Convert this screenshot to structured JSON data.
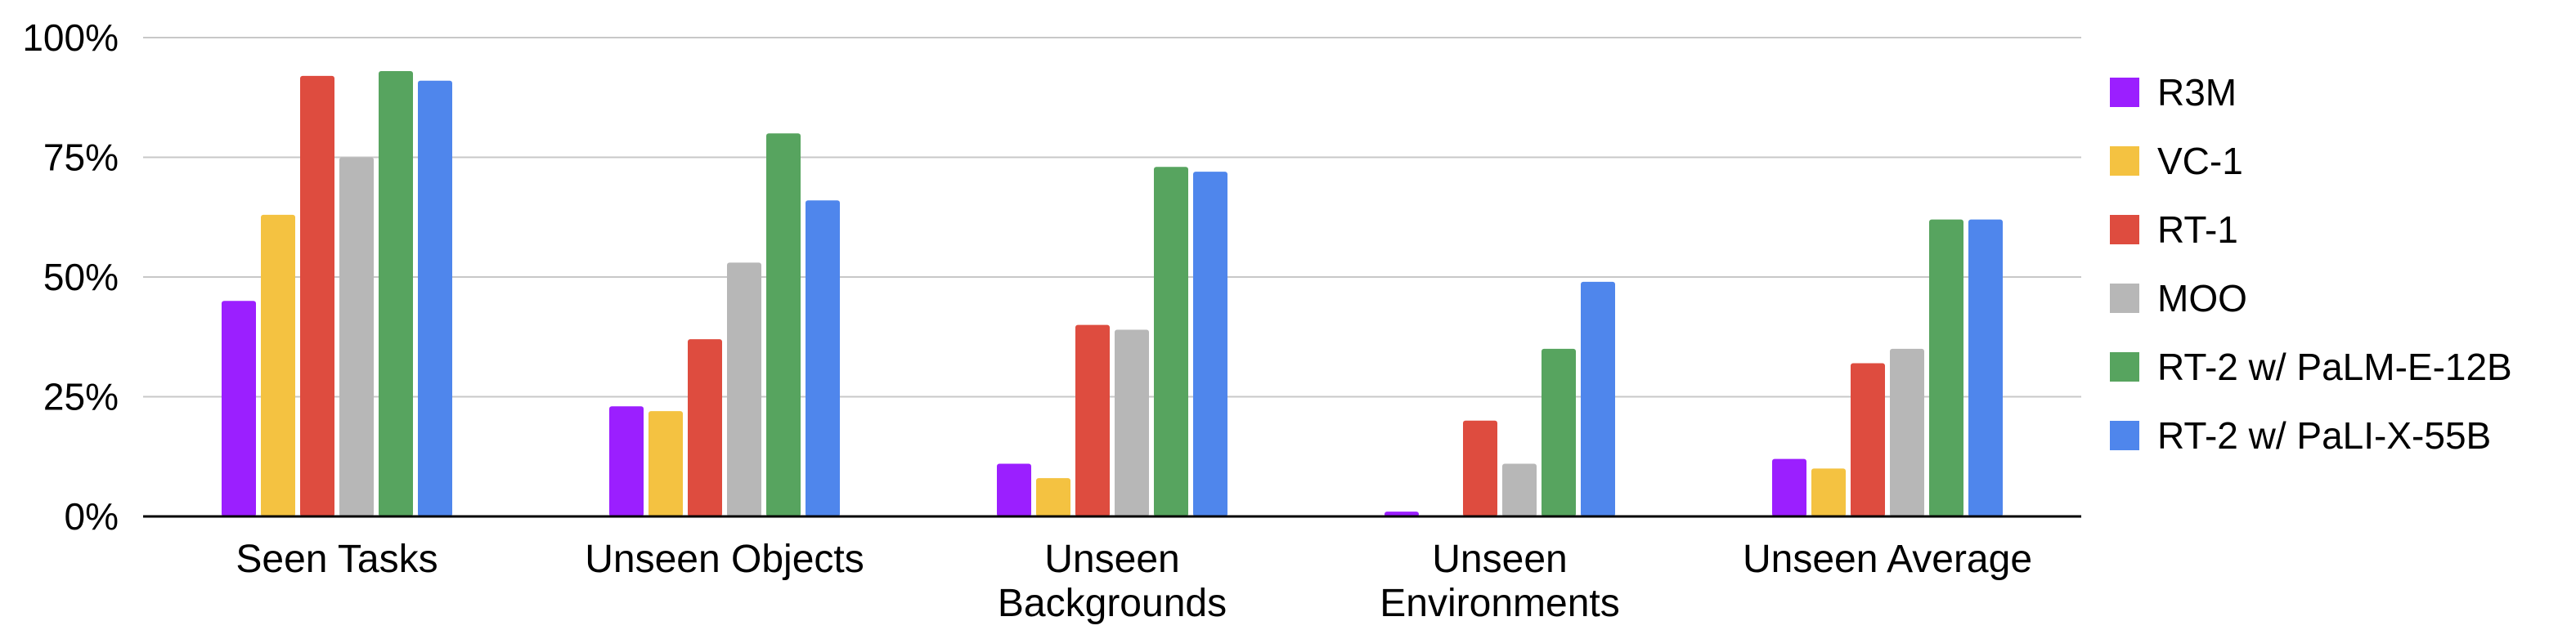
{
  "chart_data": {
    "type": "bar",
    "title": "",
    "xlabel": "",
    "ylabel": "",
    "ylim": [
      0,
      100
    ],
    "yticks": [
      "0%",
      "25%",
      "50%",
      "75%",
      "100%"
    ],
    "categories": [
      [
        "Seen Tasks"
      ],
      [
        "Unseen Objects"
      ],
      [
        "Unseen",
        "Backgrounds"
      ],
      [
        "Unseen",
        "Environments"
      ],
      [
        "Unseen Average"
      ]
    ],
    "series": [
      {
        "name": "R3M",
        "color": "#9b1fff",
        "values": [
          45,
          23,
          11,
          1,
          12
        ]
      },
      {
        "name": "VC-1",
        "color": "#f4c241",
        "values": [
          63,
          22,
          8,
          0,
          10
        ]
      },
      {
        "name": "RT-1",
        "color": "#de4c3f",
        "values": [
          92,
          37,
          40,
          20,
          32
        ]
      },
      {
        "name": "MOO",
        "color": "#b7b7b7",
        "values": [
          75,
          53,
          39,
          11,
          35
        ]
      },
      {
        "name": "RT-2 w/ PaLM-E-12B",
        "color": "#57a45f",
        "values": [
          93,
          80,
          73,
          35,
          62
        ]
      },
      {
        "name": "RT-2 w/ PaLI-X-55B",
        "color": "#4f86ec",
        "values": [
          91,
          66,
          72,
          49,
          62
        ]
      }
    ],
    "grid": true,
    "legend": "right"
  }
}
